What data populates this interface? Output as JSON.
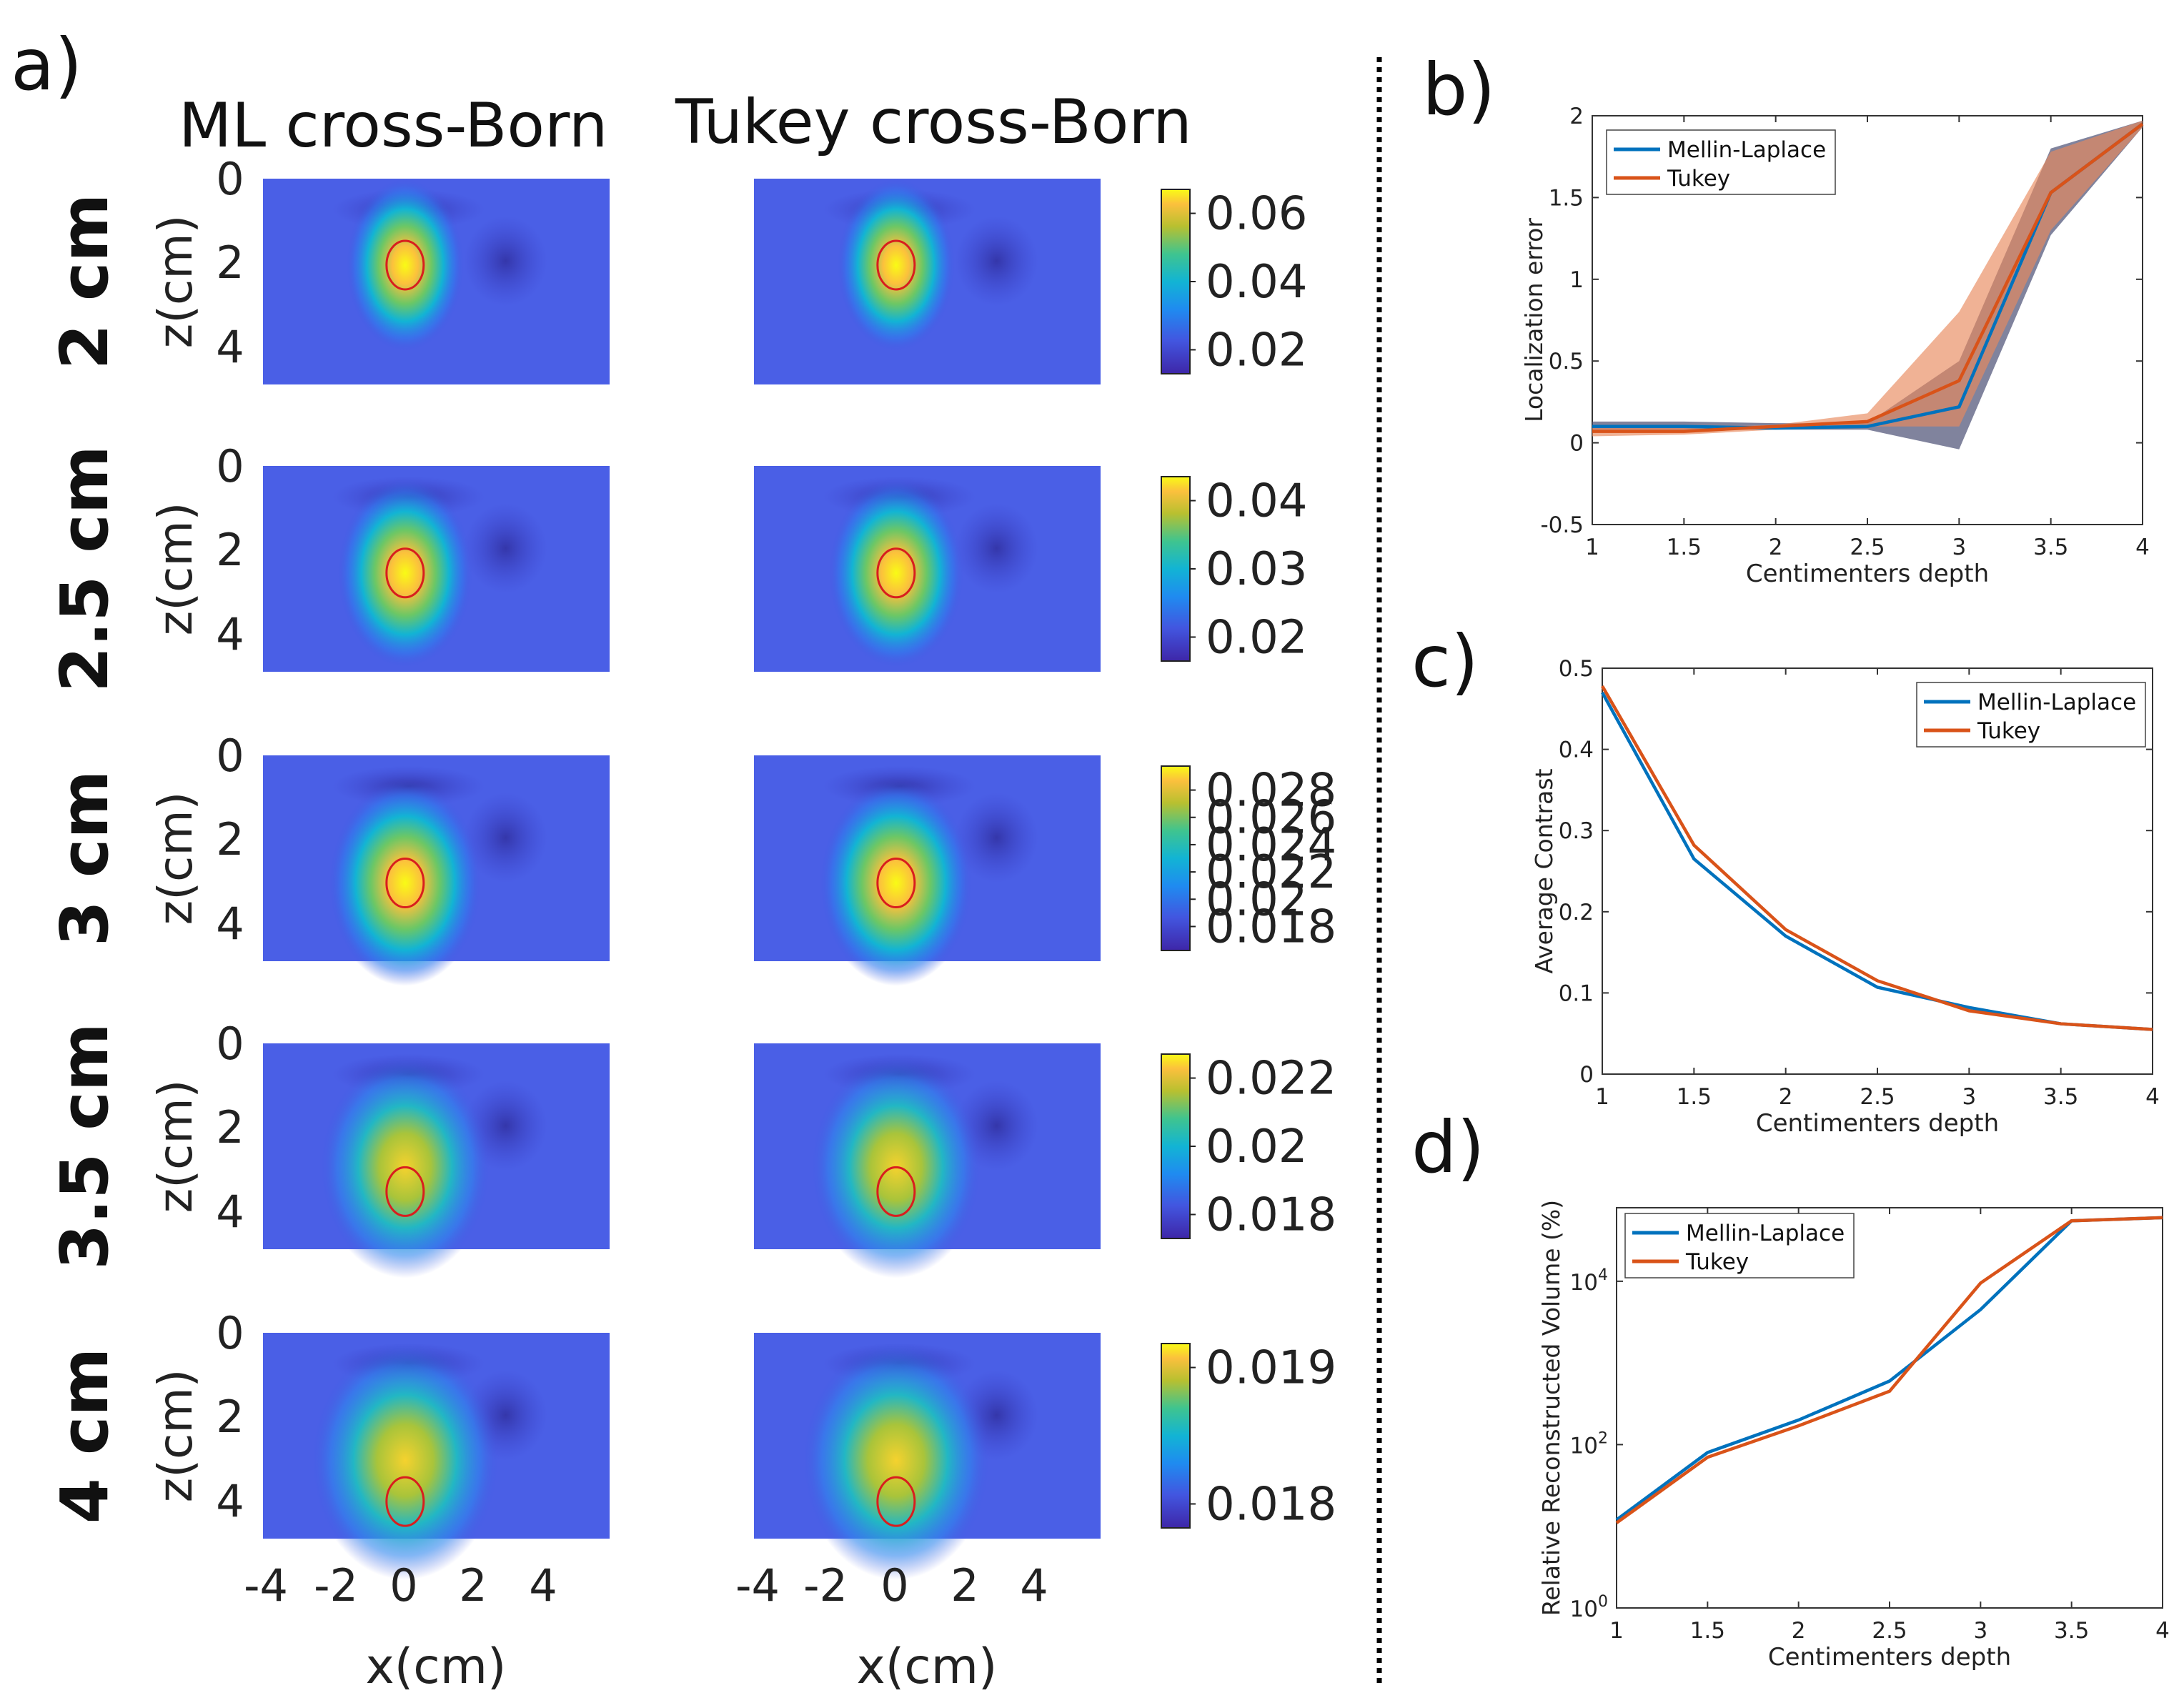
{
  "panel_a": {
    "panel_label": "a)",
    "col_titles": [
      "ML cross-Born",
      "Tukey cross-Born"
    ],
    "row_labels": [
      "2 cm",
      "2.5 cm",
      "3 cm",
      "3.5 cm",
      "4 cm"
    ],
    "ylabel": "z(cm)",
    "xlabel": "x(cm)",
    "y_ticks": [
      "0",
      "2",
      "4"
    ],
    "x_ticks": [
      "-4",
      "-2",
      "0",
      "2",
      "4"
    ],
    "colorbars": [
      [
        "0.06",
        "0.04",
        "0.02"
      ],
      [
        "0.04",
        "0.03",
        "0.02"
      ],
      [
        "0.028",
        "0.026",
        "0.024",
        "0.022",
        "0.02",
        "0.018"
      ],
      [
        "0.022",
        "0.02",
        "0.018"
      ],
      [
        "0.019",
        "0.018"
      ]
    ]
  },
  "chart_data": [
    {
      "panel_label": "b)",
      "type": "line",
      "xlabel": "Centimenters depth",
      "ylabel": "Localization error",
      "x": [
        1,
        1.5,
        2,
        2.5,
        3,
        3.5,
        4
      ],
      "xticks": [
        "1",
        "1.5",
        "2",
        "2.5",
        "3",
        "3.5",
        "4"
      ],
      "yticks": [
        "-0.5",
        "0",
        "0.5",
        "1",
        "1.5",
        "2"
      ],
      "xlim": [
        1,
        4
      ],
      "ylim": [
        -0.5,
        2
      ],
      "legend_position": "top-left",
      "series": [
        {
          "name": "Mellin-Laplace",
          "color": "#0072bd",
          "values": [
            0.1,
            0.1,
            0.09,
            0.1,
            0.22,
            1.53,
            1.95
          ],
          "band_lower": [
            0.08,
            0.08,
            0.08,
            0.08,
            -0.04,
            1.27,
            1.93
          ],
          "band_upper": [
            0.13,
            0.13,
            0.12,
            0.12,
            0.5,
            1.8,
            1.97
          ]
        },
        {
          "name": "Tukey",
          "color": "#d95319",
          "values": [
            0.07,
            0.07,
            0.1,
            0.13,
            0.38,
            1.53,
            1.95
          ],
          "band_lower": [
            0.04,
            0.05,
            0.08,
            0.1,
            0.1,
            1.3,
            1.93
          ],
          "band_upper": [
            0.09,
            0.09,
            0.11,
            0.18,
            0.8,
            1.78,
            1.97
          ]
        }
      ]
    },
    {
      "panel_label": "c)",
      "type": "line",
      "xlabel": "Centimenters depth",
      "ylabel": "Average Contrast",
      "x": [
        1,
        1.5,
        2,
        2.5,
        3,
        3.5,
        4
      ],
      "xticks": [
        "1",
        "1.5",
        "2",
        "2.5",
        "3",
        "3.5",
        "4"
      ],
      "yticks": [
        "0",
        "0.1",
        "0.2",
        "0.3",
        "0.4",
        "0.5"
      ],
      "xlim": [
        1,
        4
      ],
      "ylim": [
        0,
        0.5
      ],
      "legend_position": "top-right",
      "series": [
        {
          "name": "Mellin-Laplace",
          "color": "#0072bd",
          "values": [
            0.47,
            0.265,
            0.17,
            0.107,
            0.082,
            0.062,
            0.055
          ]
        },
        {
          "name": "Tukey",
          "color": "#d95319",
          "values": [
            0.478,
            0.282,
            0.178,
            0.115,
            0.078,
            0.062,
            0.055
          ]
        }
      ]
    },
    {
      "panel_label": "d)",
      "type": "line",
      "xlabel": "Centimenters depth",
      "ylabel": "Relative Reconstructed Volume (%)",
      "yscale": "log",
      "x": [
        1,
        1.5,
        2,
        2.5,
        3,
        3.5,
        4
      ],
      "xticks": [
        "1",
        "1.5",
        "2",
        "2.5",
        "3",
        "3.5",
        "4"
      ],
      "ytick_exponents": [
        "0",
        "2",
        "4"
      ],
      "ytick_base": "10",
      "xlim": [
        1,
        4
      ],
      "ylim_log10": [
        0,
        4.9
      ],
      "legend_position": "top-left",
      "series": [
        {
          "name": "Mellin-Laplace",
          "color": "#0072bd",
          "values": [
            12,
            80,
            200,
            600,
            4500,
            55000,
            60000
          ]
        },
        {
          "name": "Tukey",
          "color": "#d95319",
          "values": [
            11,
            70,
            170,
            450,
            9500,
            55000,
            60000
          ]
        }
      ]
    }
  ]
}
